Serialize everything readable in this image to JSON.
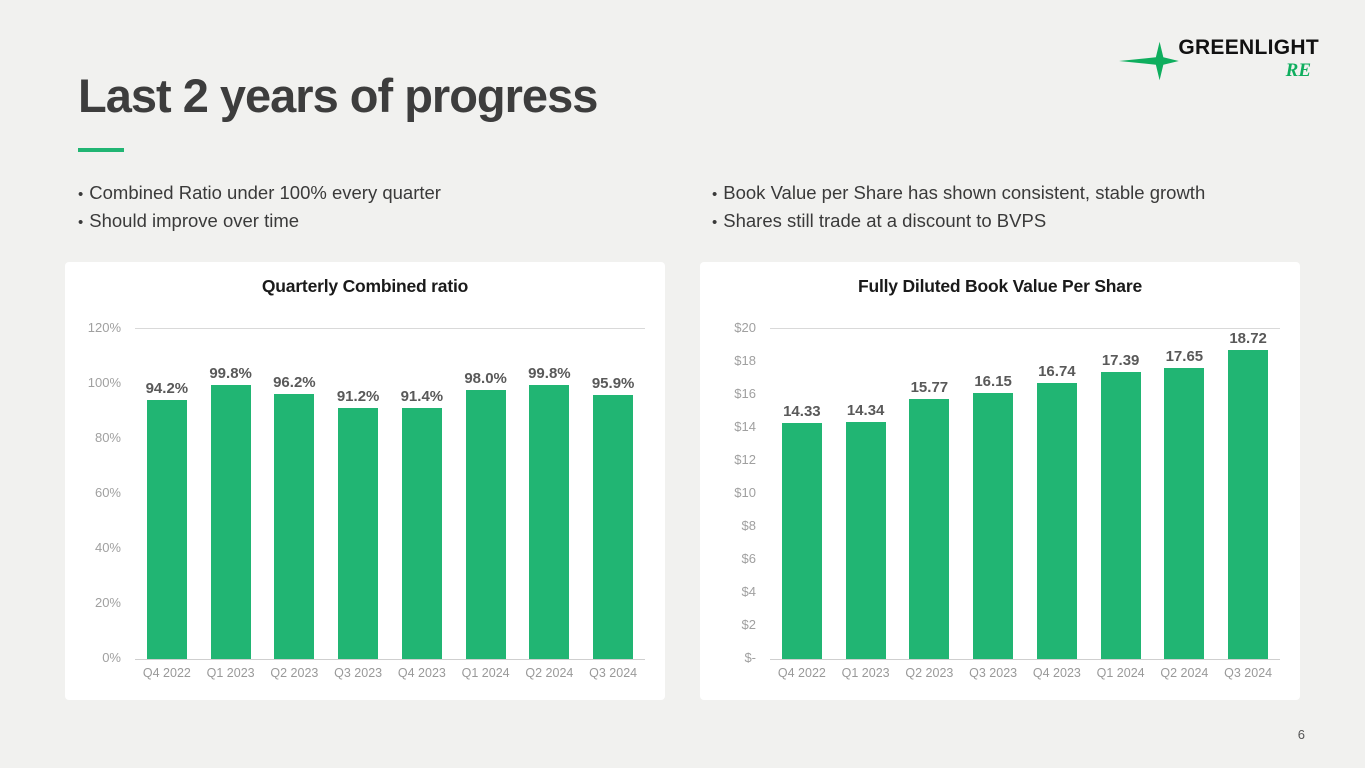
{
  "slide": {
    "title": "Last 2 years of progress",
    "page_number": "6",
    "logo": {
      "line1": "GREENLIGHT",
      "line2": "RE"
    },
    "bullets_left": [
      "Combined Ratio under 100% every quarter",
      "Should improve over time"
    ],
    "bullets_right": [
      "Book Value per Share has shown consistent, stable growth",
      "Shares still trade at a discount to BVPS"
    ]
  },
  "colors": {
    "background": "#f1f1ef",
    "card": "#ffffff",
    "bar_green": "#21b573",
    "logo_green": "#0fae5e",
    "title_gray": "#3d3d3d",
    "tick_gray": "#a0a0a0",
    "data_label_gray": "#595959",
    "gridline_gray": "#d9d9d9"
  },
  "chart_data": [
    {
      "type": "bar",
      "title": "Quarterly Combined ratio",
      "categories": [
        "Q4 2022",
        "Q1 2023",
        "Q2 2023",
        "Q3 2023",
        "Q4 2023",
        "Q1 2024",
        "Q2 2024",
        "Q3 2024"
      ],
      "values": [
        94.2,
        99.8,
        96.2,
        91.2,
        91.4,
        98.0,
        99.8,
        95.9
      ],
      "data_labels": [
        "94.2%",
        "99.8%",
        "96.2%",
        "91.2%",
        "91.4%",
        "98.0%",
        "99.8%",
        "95.9%"
      ],
      "ylim": [
        0,
        120
      ],
      "yticks": [
        "120%",
        "100%",
        "80%",
        "60%",
        "40%",
        "20%",
        "0%"
      ],
      "grid": "top line and baseline only",
      "legend": "none"
    },
    {
      "type": "bar",
      "title": "Fully Diluted Book Value Per Share",
      "categories": [
        "Q4 2022",
        "Q1 2023",
        "Q2 2023",
        "Q3 2023",
        "Q4 2023",
        "Q1 2024",
        "Q2 2024",
        "Q3 2024"
      ],
      "values": [
        14.33,
        14.34,
        15.77,
        16.15,
        16.74,
        17.39,
        17.65,
        18.72
      ],
      "data_labels": [
        "14.33",
        "14.34",
        "15.77",
        "16.15",
        "16.74",
        "17.39",
        "17.65",
        "18.72"
      ],
      "ylim": [
        0,
        20
      ],
      "yticks": [
        "$20",
        "$18",
        "$16",
        "$14",
        "$12",
        "$10",
        "$8",
        "$6",
        "$4",
        "$2",
        "$-"
      ],
      "grid": "top line and baseline only",
      "legend": "none"
    }
  ]
}
